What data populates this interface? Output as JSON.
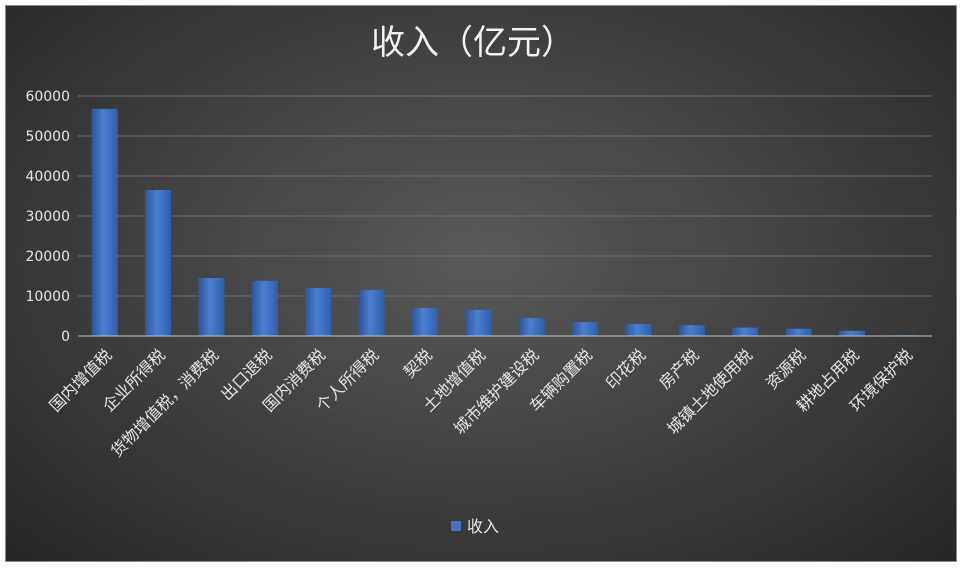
{
  "chart_data": {
    "type": "bar",
    "title": "收入（亿元）",
    "xlabel": "",
    "ylabel": "",
    "ylim": [
      0,
      60000
    ],
    "yticks": [
      0,
      10000,
      20000,
      30000,
      40000,
      50000,
      60000
    ],
    "grid": true,
    "legend_position": "bottom",
    "categories": [
      "国内增值税",
      "企业所得税",
      "货物增值税，消费税",
      "出口退税",
      "国内消费税",
      "个人所得税",
      "契税",
      "土地增值税",
      "城市维护建设税",
      "车辆购置税",
      "印花税",
      "房产税",
      "城镇土地使用税",
      "资源税",
      "耕地占用税",
      "环境保护税"
    ],
    "series": [
      {
        "name": "收入",
        "color": "#4472c4",
        "values": [
          56800,
          36500,
          14500,
          13800,
          12000,
          11500,
          7000,
          6500,
          4500,
          3500,
          3000,
          2700,
          2100,
          1800,
          1300,
          200
        ]
      }
    ]
  }
}
